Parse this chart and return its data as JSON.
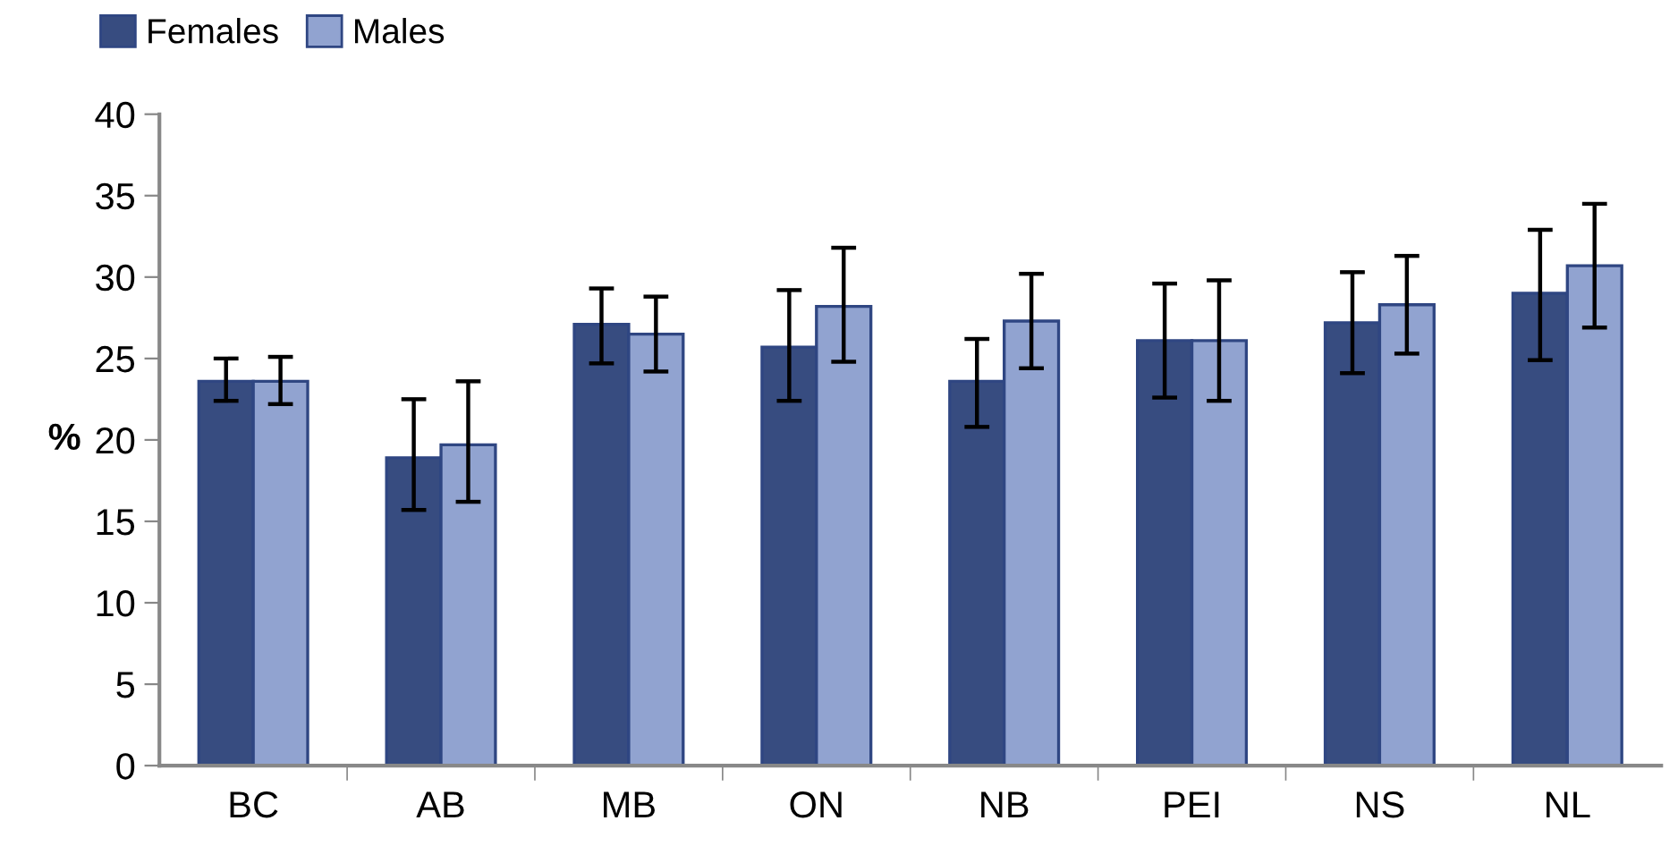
{
  "chart_data": {
    "type": "bar",
    "ylabel": "%",
    "categories": [
      "BC",
      "AB",
      "MB",
      "ON",
      "NB",
      "PEI",
      "NS",
      "NL"
    ],
    "series": [
      {
        "name": "Females",
        "color": "#374c80",
        "values": [
          23.6,
          18.9,
          27.1,
          25.7,
          23.6,
          26.1,
          27.2,
          29.0
        ],
        "errors": [
          [
            22.4,
            25.0
          ],
          [
            15.7,
            22.5
          ],
          [
            24.7,
            29.3
          ],
          [
            22.4,
            29.2
          ],
          [
            20.8,
            26.2
          ],
          [
            22.6,
            29.6
          ],
          [
            24.1,
            30.3
          ],
          [
            24.9,
            32.9
          ]
        ]
      },
      {
        "name": "Males",
        "color": "#91a3d0",
        "values": [
          23.6,
          19.7,
          26.5,
          28.2,
          27.3,
          26.1,
          28.3,
          30.7
        ],
        "errors": [
          [
            22.2,
            25.1
          ],
          [
            16.2,
            23.6
          ],
          [
            24.2,
            28.8
          ],
          [
            24.8,
            31.8
          ],
          [
            24.4,
            30.2
          ],
          [
            22.4,
            29.8
          ],
          [
            25.3,
            31.3
          ],
          [
            26.9,
            34.5
          ]
        ]
      }
    ],
    "ylim": [
      0,
      40
    ],
    "yticks": [
      0,
      5,
      10,
      15,
      20,
      25,
      30,
      35,
      40
    ],
    "grid": false,
    "legend": "top left"
  }
}
